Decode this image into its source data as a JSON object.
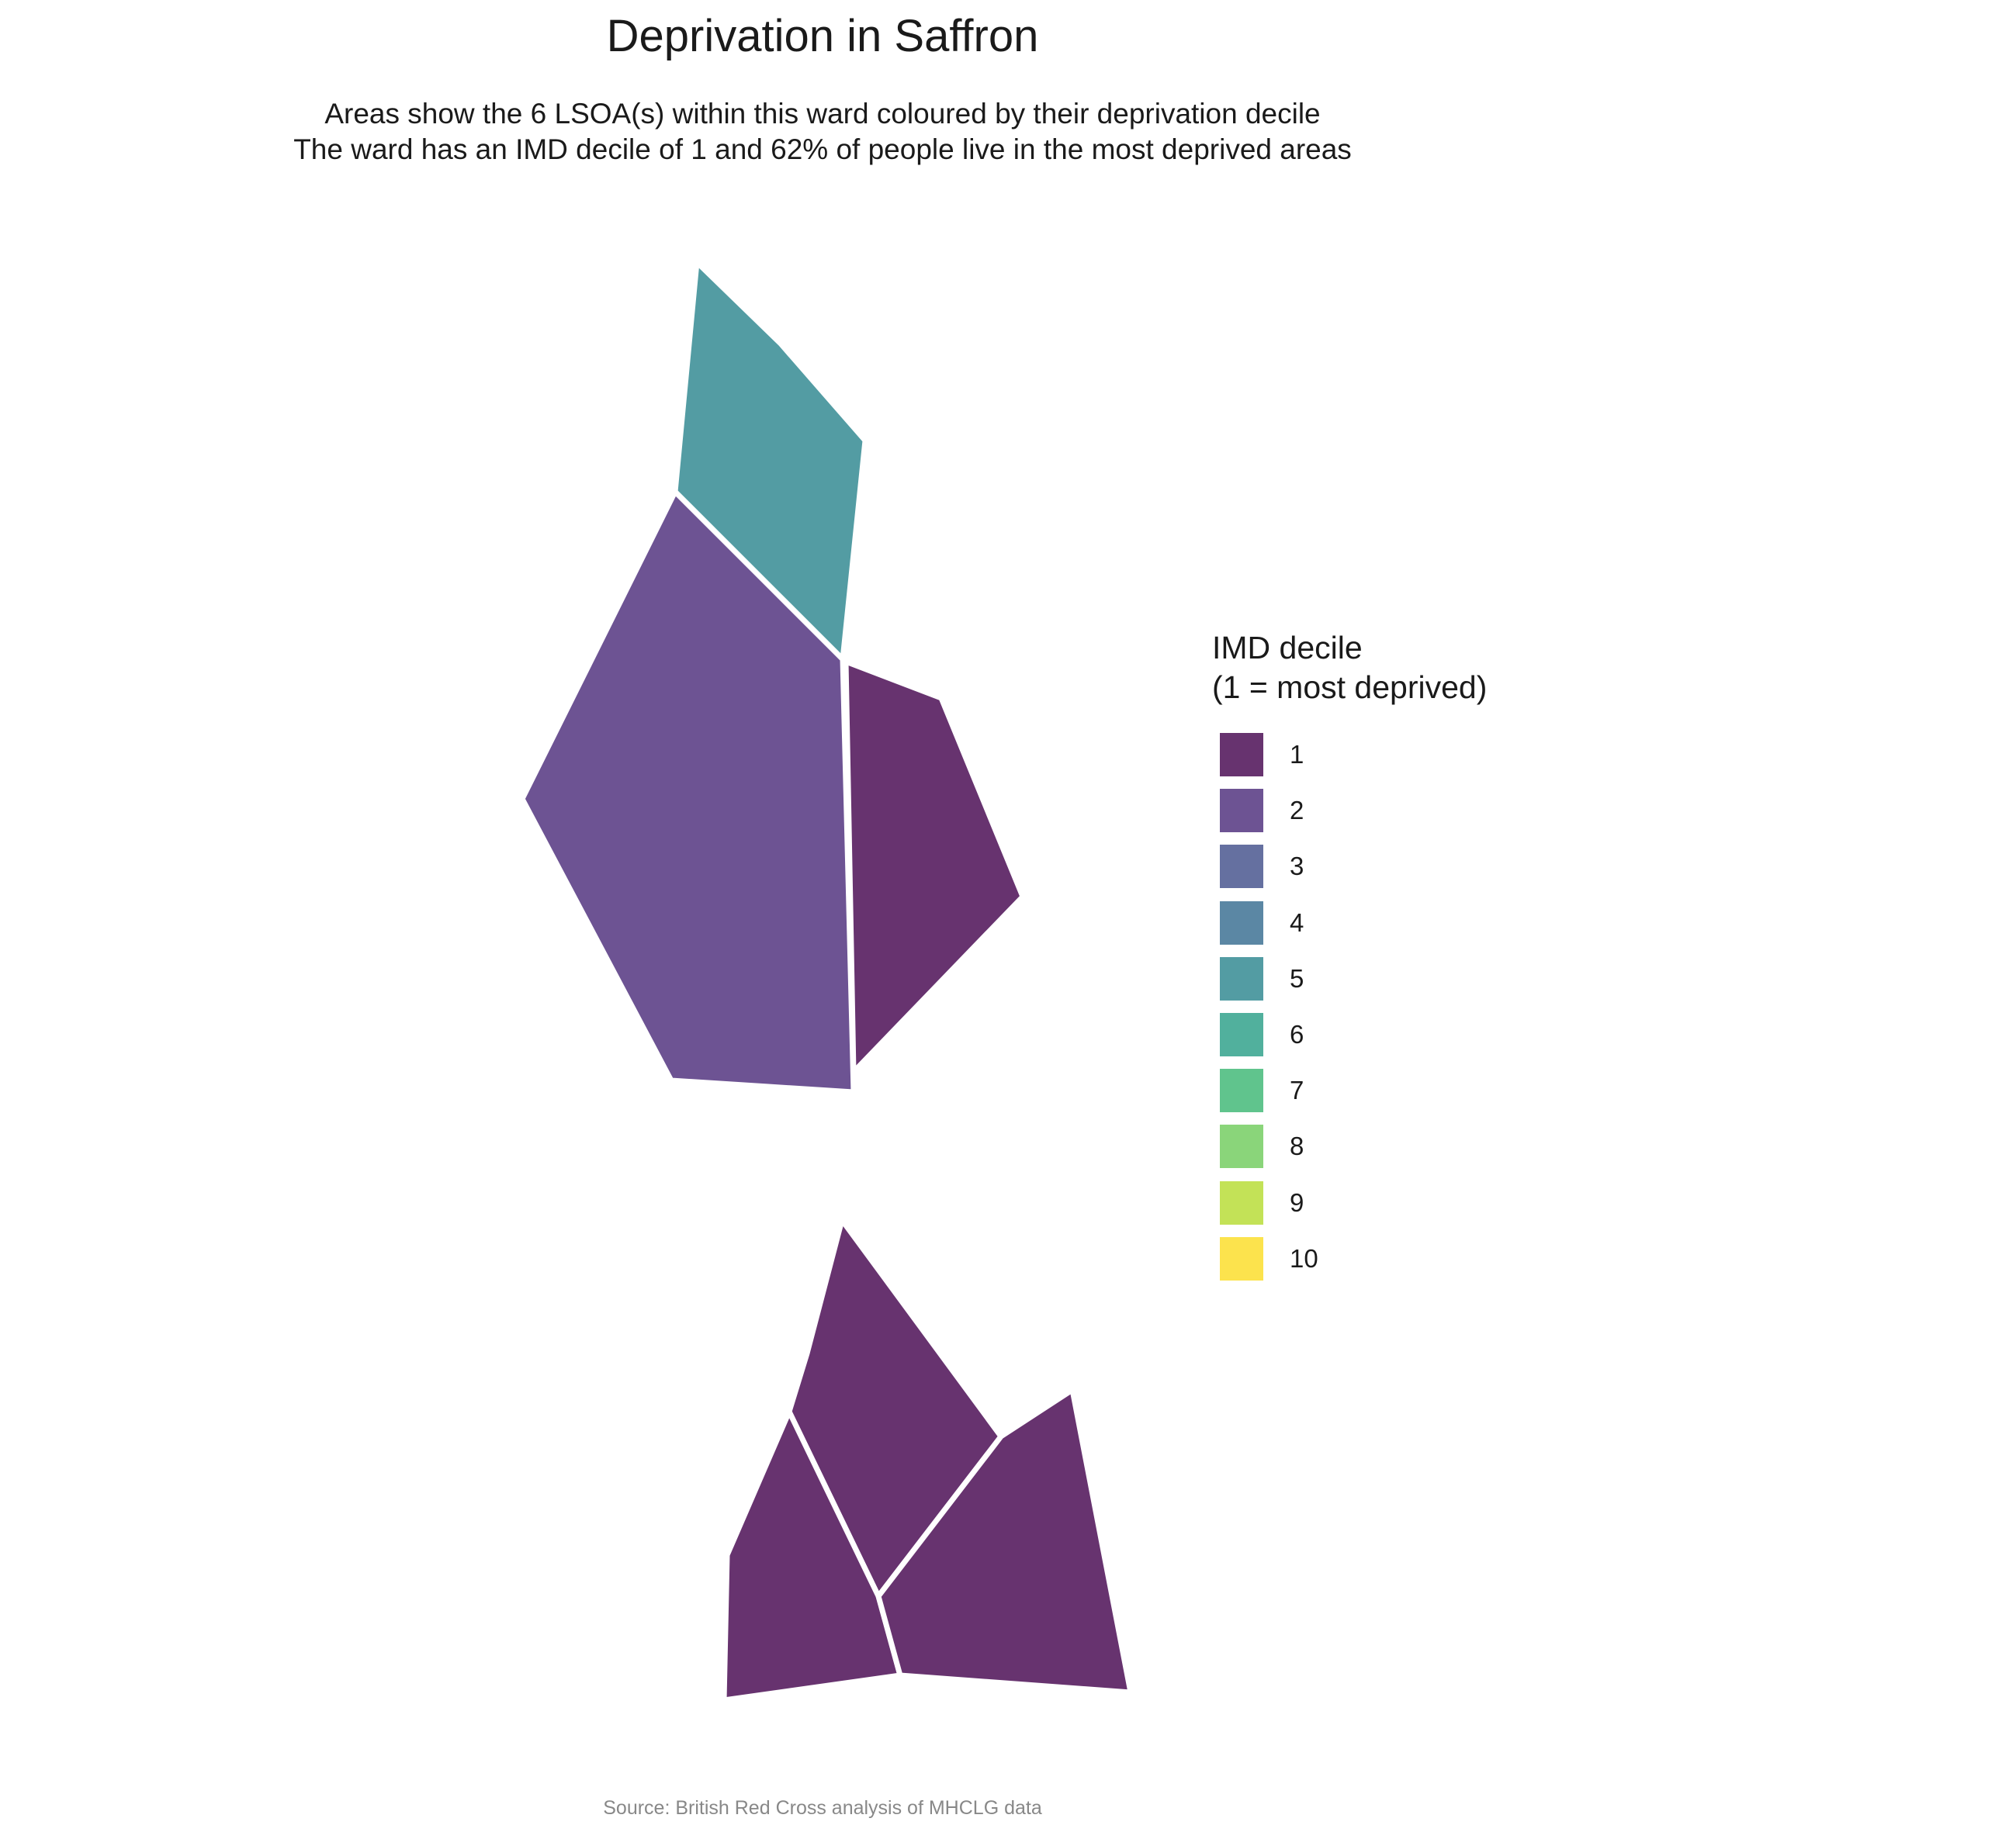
{
  "title": "Deprivation in Saffron",
  "subtitle": {
    "line1": "Areas show the 6 LSOA(s) within this ward coloured by their deprivation decile",
    "line2": "The ward has an IMD decile of 1 and 62% of people live in the most deprived areas"
  },
  "legend": {
    "title_line1": "IMD decile",
    "title_line2": "(1 = most deprived)",
    "items": [
      {
        "label": "1",
        "color": "#67336F"
      },
      {
        "label": "2",
        "color": "#6D5393"
      },
      {
        "label": "3",
        "color": "#6570A0"
      },
      {
        "label": "4",
        "color": "#5B87A4"
      },
      {
        "label": "5",
        "color": "#539CA3"
      },
      {
        "label": "6",
        "color": "#51B09D"
      },
      {
        "label": "7",
        "color": "#60C48D"
      },
      {
        "label": "8",
        "color": "#8AD57A"
      },
      {
        "label": "9",
        "color": "#C3E257"
      },
      {
        "label": "10",
        "color": "#FCE34D"
      }
    ]
  },
  "map": {
    "lsoas": [
      {
        "decile": 5,
        "color": "#539CA3"
      },
      {
        "decile": 2,
        "color": "#6D5393"
      },
      {
        "decile": 1,
        "color": "#67336F"
      },
      {
        "decile": 1,
        "color": "#67336F"
      },
      {
        "decile": 1,
        "color": "#67336F"
      },
      {
        "decile": 1,
        "color": "#67336F"
      }
    ]
  },
  "caption": "Source: British Red Cross analysis of MHCLG data"
}
